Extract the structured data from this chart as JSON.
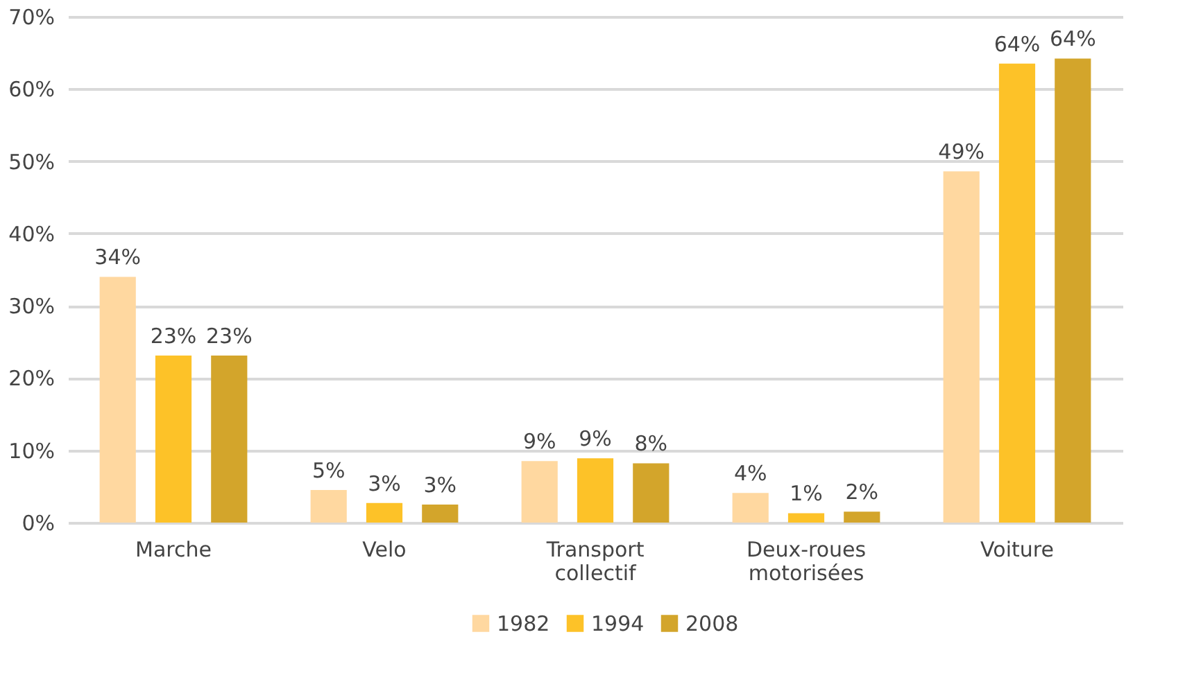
{
  "chart_data": {
    "type": "bar",
    "categories": [
      "Marche",
      "Velo",
      "Transport collectif",
      "Deux-roues motorisées",
      "Voiture"
    ],
    "series": [
      {
        "name": "1982",
        "color": "#ffd8a0",
        "values": [
          34.0,
          4.5,
          8.5,
          4.1,
          48.6
        ],
        "value_labels": [
          "34%",
          "5%",
          "9%",
          "4%",
          "49%"
        ]
      },
      {
        "name": "1994",
        "color": "#fdc228",
        "values": [
          23.1,
          2.7,
          8.9,
          1.3,
          63.5
        ],
        "value_labels": [
          "23%",
          "3%",
          "9%",
          "1%",
          "64%"
        ]
      },
      {
        "name": "2008",
        "color": "#d3a52b",
        "values": [
          23.1,
          2.5,
          8.2,
          1.5,
          64.2
        ],
        "value_labels": [
          "23%",
          "3%",
          "8%",
          "2%",
          "64%"
        ]
      }
    ],
    "ylim": [
      0,
      70
    ],
    "yticks": [
      {
        "value": 0,
        "label": "0%"
      },
      {
        "value": 10,
        "label": "10%"
      },
      {
        "value": 20,
        "label": "20%"
      },
      {
        "value": 30,
        "label": "30%"
      },
      {
        "value": 40,
        "label": "40%"
      },
      {
        "value": 50,
        "label": "50%"
      },
      {
        "value": 60,
        "label": "60%"
      },
      {
        "value": 70,
        "label": "70%"
      }
    ],
    "grid": "y",
    "legend": "bottom"
  }
}
